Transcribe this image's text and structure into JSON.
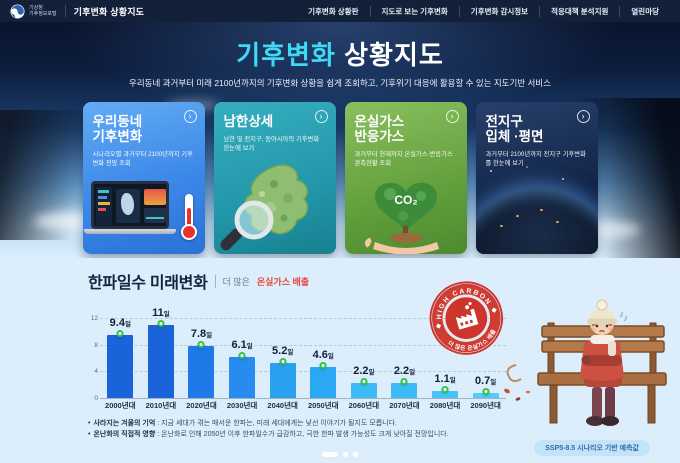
{
  "nav": {
    "logo_line1": "기상청",
    "logo_line2": "기후정보포털",
    "site_title": "기후변화 상황지도",
    "items": [
      {
        "label": "기후변화 상황판"
      },
      {
        "label": "지도로 보는 기후변화"
      },
      {
        "label": "기후변화 감시정보"
      },
      {
        "label": "적응대책 분석지원"
      },
      {
        "label": "열린마당"
      }
    ]
  },
  "hero": {
    "title_highlight": "기후변화",
    "title_rest": " 상황지도",
    "subtitle": "우리동네 과거부터 미래 2100년까지의 기후변화 상황을 쉽게 조회하고, 기후위기 대응에 활용할 수 있는 지도기반 서비스",
    "arrow_glyph": "›"
  },
  "cards": [
    {
      "title_line1": "우리동네",
      "title_line2": "기후변화",
      "desc": "시나리오별 과거부터 2100년까지 기후변화 전망 조회",
      "accent": "#3c88e8"
    },
    {
      "title_line1": "남한상세",
      "title_line2": "",
      "desc": "남한 및 전지구, 동아시아의 기후변화 한눈에 보기",
      "accent": "#2397aa"
    },
    {
      "title_line1": "온실가스",
      "title_line2": "반응가스",
      "desc": "과거부터 현재까지 온실가스·반응가스 관측현황 조회",
      "accent": "#62a03c",
      "co2_label": "CO₂"
    },
    {
      "title_line1": "전지구",
      "title_line2": "입체 ·평면",
      "desc": "과거부터 2100년까지 전지구 기후변화를 한눈에 보기",
      "accent": "#15284c"
    }
  ],
  "section": {
    "title": "한파일수 미래변화",
    "sub_prefix": "더 많은",
    "sub_highlight": "온실가스 배출",
    "stamp_top": "HIGH CARBON",
    "stamp_bottom": "더 많은 온실가스 배출",
    "notes": [
      {
        "lead": "사라지는 겨울의 기억",
        "body": " : 지금 세대가 겪는 매서운 한파는, 미래 세대에게는 낯선 이야기가 될지도 모릅니다."
      },
      {
        "lead": "온난화의 직접적 영향",
        "body": " : 온난화로 인해 2050년 이후 한파일수가 급감하고, 극한 한파 발생 가능성도 크게 낮아질 전망입니다."
      }
    ],
    "badge": "SSP5-8.5 시나리오 기반 예측값"
  },
  "chart_data": {
    "type": "bar",
    "title": "한파일수 미래변화",
    "categories": [
      "2000년대",
      "2010년대",
      "2020년대",
      "2030년대",
      "2040년대",
      "2050년대",
      "2060년대",
      "2070년대",
      "2080년대",
      "2090년대"
    ],
    "values": [
      9.4,
      11,
      7.8,
      6.1,
      5.2,
      4.6,
      2.2,
      2.2,
      1.1,
      0.7
    ],
    "unit": "일",
    "ylim": [
      0,
      12
    ],
    "yticks": [
      0,
      4,
      8,
      12
    ],
    "grid": "dashed",
    "legend": "none",
    "bar_colors": [
      "#1a63d9",
      "#1a63d9",
      "#1e79e9",
      "#278bef",
      "#2aa0f0",
      "#2aa8f2",
      "#3bbcf5",
      "#3bbcf5",
      "#47c4f6",
      "#52ccf8"
    ],
    "marker_color": "#35c24d"
  }
}
